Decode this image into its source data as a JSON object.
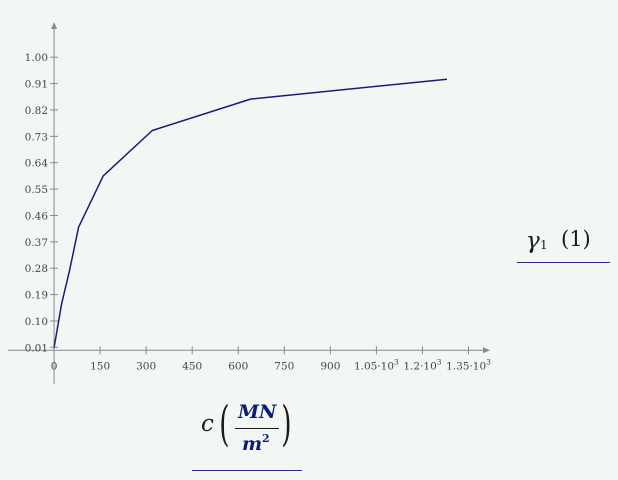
{
  "chart_data": {
    "type": "line",
    "x": [
      0,
      25,
      50,
      80,
      160,
      320,
      640,
      1280
    ],
    "series": [
      {
        "values": [
          0.01,
          0.16,
          0.27,
          0.42,
          0.595,
          0.75,
          0.857,
          0.925
        ]
      }
    ],
    "xlim": [
      -150,
      1420
    ],
    "ylim": [
      -0.115,
      1.12
    ],
    "x_ticks": [
      0,
      150,
      300,
      450,
      600,
      750,
      900,
      1050,
      1200,
      1350
    ],
    "x_tick_labels": [
      {
        "base": "0",
        "exp": ""
      },
      {
        "base": "150",
        "exp": ""
      },
      {
        "base": "300",
        "exp": ""
      },
      {
        "base": "450",
        "exp": ""
      },
      {
        "base": "600",
        "exp": ""
      },
      {
        "base": "750",
        "exp": ""
      },
      {
        "base": "900",
        "exp": ""
      },
      {
        "base": "1.05·10",
        "exp": "3"
      },
      {
        "base": "1.2·10",
        "exp": "3"
      },
      {
        "base": "1.35·10",
        "exp": "3"
      }
    ],
    "y_ticks": [
      0.01,
      0.1,
      0.19,
      0.28,
      0.37,
      0.46,
      0.55,
      0.64,
      0.73,
      0.82,
      0.91,
      1.0
    ],
    "y_tick_labels": [
      "0.01",
      "0.10",
      "0.19",
      "0.28",
      "0.37",
      "0.46",
      "0.55",
      "0.64",
      "0.73",
      "0.82",
      "0.91",
      "1.00"
    ],
    "ylabel": {
      "symbol": "γ",
      "subscript": "1",
      "unit": "(1)"
    },
    "xlabel": {
      "symbol": "c",
      "unit_numerator": "MN",
      "unit_denominator": "m",
      "unit_denominator_exp": "2"
    },
    "grid": false
  },
  "colors": {
    "line": "#1a1a7a",
    "axis": "#8a8a8a",
    "background": "#f3f7f4",
    "label_accent": "#0b1b7a"
  }
}
